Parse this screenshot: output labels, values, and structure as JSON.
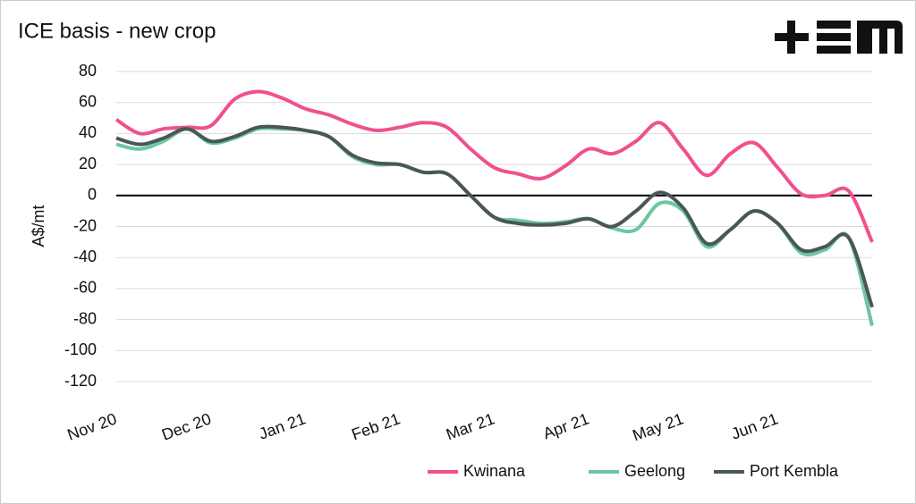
{
  "chart_data": {
    "type": "line",
    "title": "ICE basis - new crop",
    "y_label": "A$/mt",
    "categories": [
      "Nov 20",
      null,
      null,
      null,
      "Dec 20",
      null,
      null,
      null,
      "Jan 21",
      null,
      null,
      null,
      "Feb 21",
      null,
      null,
      null,
      "Mar 21",
      null,
      null,
      null,
      "Apr 21",
      null,
      null,
      null,
      "May 21",
      null,
      null,
      null,
      "Jun 21",
      null,
      null,
      null,
      null
    ],
    "series": [
      {
        "name": "Kwinana",
        "color": "#f0508f",
        "values": [
          49,
          40,
          43,
          44,
          45,
          62,
          67,
          63,
          56,
          52,
          46,
          42,
          44,
          47,
          44,
          30,
          18,
          14,
          11,
          19,
          30,
          27,
          35,
          47,
          30,
          13,
          27,
          34,
          18,
          1,
          0,
          3,
          -30
        ]
      },
      {
        "name": "Geelong",
        "color": "#6cc7a0",
        "values": [
          33,
          30,
          35,
          43,
          34,
          37,
          43,
          43,
          42,
          38,
          25,
          20,
          20,
          15,
          14,
          0,
          -14,
          -16,
          -18,
          -17,
          -15,
          -21,
          -22,
          -5,
          -10,
          -33,
          -22,
          -10,
          -18,
          -37,
          -35,
          -27,
          -84
        ]
      },
      {
        "name": "Port Kembla",
        "color": "#4a5658",
        "values": [
          37,
          33,
          37,
          43,
          35,
          38,
          44,
          44,
          42,
          38,
          26,
          21,
          20,
          15,
          14,
          0,
          -14,
          -18,
          -19,
          -18,
          -15,
          -20,
          -10,
          2,
          -8,
          -31,
          -22,
          -10,
          -18,
          -35,
          -33,
          -27,
          -72
        ]
      }
    ],
    "ylim": [
      -120,
      80
    ],
    "yticks": [
      -120,
      -100,
      -80,
      -60,
      -40,
      -20,
      0,
      20,
      40,
      60,
      80
    ],
    "grid": true,
    "legend": "bottom"
  }
}
